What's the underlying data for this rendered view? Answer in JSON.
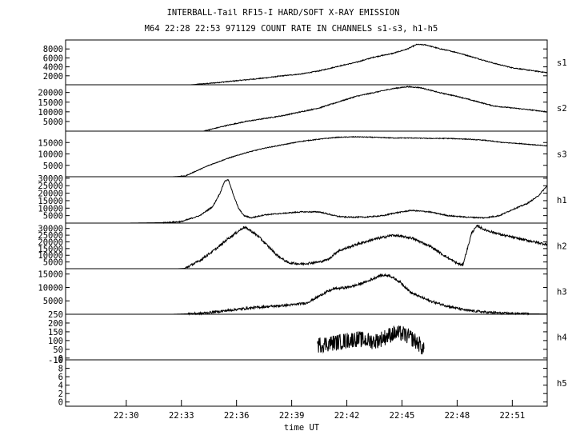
{
  "title_line1": "INTERBALL-Tail RF15-I HARD/SOFT X-RAY EMISSION",
  "title_line2": "M64  22:28 22:53 971129  COUNT RATE IN CHANNELS s1-s3, h1-h5",
  "chart_data": {
    "type": "line",
    "xlabel": "time UT",
    "x_ticks": [
      "22:30",
      "22:33",
      "22:36",
      "22:39",
      "22:42",
      "22:45",
      "22:48",
      "22:51"
    ],
    "x_tick_minutes": [
      2,
      5,
      8,
      11,
      14,
      17,
      20,
      23
    ],
    "xlim_minutes_after_22_28": [
      -1.3,
      24.9
    ],
    "line_color": "#000000",
    "panels": [
      {
        "name": "s1",
        "ylim": [
          0,
          10000
        ],
        "yticks": [
          2000,
          4000,
          6000,
          8000
        ],
        "tick_labels": [
          "2000",
          "4000",
          "6000",
          "8000"
        ],
        "noise": 0.01,
        "points": [
          [
            5.5,
            0
          ],
          [
            6.5,
            300
          ],
          [
            7.5,
            700
          ],
          [
            8.5,
            1100
          ],
          [
            9.5,
            1500
          ],
          [
            10.5,
            2000
          ],
          [
            11.5,
            2400
          ],
          [
            12.5,
            3100
          ],
          [
            13.5,
            4100
          ],
          [
            14.5,
            5000
          ],
          [
            15.5,
            6200
          ],
          [
            16.5,
            7000
          ],
          [
            17.3,
            8000
          ],
          [
            17.8,
            9000
          ],
          [
            18.3,
            8900
          ],
          [
            19.0,
            8100
          ],
          [
            20.0,
            7200
          ],
          [
            21.0,
            6000
          ],
          [
            22.0,
            4800
          ],
          [
            23.0,
            3800
          ],
          [
            24.0,
            3200
          ],
          [
            24.9,
            2700
          ]
        ]
      },
      {
        "name": "s2",
        "ylim": [
          0,
          24000
        ],
        "yticks": [
          5000,
          10000,
          15000,
          20000
        ],
        "tick_labels": [
          "5000",
          "10000",
          "15000",
          "20000"
        ],
        "noise": 0.01,
        "points": [
          [
            6.2,
            0
          ],
          [
            7.5,
            3000
          ],
          [
            8.5,
            5000
          ],
          [
            9.5,
            6500
          ],
          [
            10.5,
            8000
          ],
          [
            11.5,
            10000
          ],
          [
            12.5,
            12000
          ],
          [
            13.5,
            15000
          ],
          [
            14.5,
            18000
          ],
          [
            15.5,
            20000
          ],
          [
            16.5,
            22000
          ],
          [
            17.3,
            23000
          ],
          [
            18.0,
            22500
          ],
          [
            19.0,
            20000
          ],
          [
            20.0,
            18000
          ],
          [
            21.0,
            15500
          ],
          [
            22.0,
            13000
          ],
          [
            23.0,
            12000
          ],
          [
            24.0,
            11000
          ],
          [
            24.9,
            10000
          ]
        ]
      },
      {
        "name": "s3",
        "ylim": [
          0,
          20000
        ],
        "yticks": [
          5000,
          10000,
          15000
        ],
        "tick_labels": [
          "5000",
          "10000",
          "15000"
        ],
        "noise": 0.008,
        "points": [
          [
            4.5,
            0
          ],
          [
            5.2,
            300
          ],
          [
            5.8,
            2500
          ],
          [
            6.5,
            5000
          ],
          [
            7.5,
            8000
          ],
          [
            8.5,
            10500
          ],
          [
            9.5,
            12500
          ],
          [
            10.5,
            14000
          ],
          [
            11.5,
            15500
          ],
          [
            12.5,
            16500
          ],
          [
            13.5,
            17300
          ],
          [
            14.5,
            17500
          ],
          [
            15.5,
            17300
          ],
          [
            16.5,
            17000
          ],
          [
            17.5,
            17000
          ],
          [
            18.5,
            16800
          ],
          [
            19.5,
            16800
          ],
          [
            20.5,
            16500
          ],
          [
            21.5,
            16000
          ],
          [
            22.5,
            15000
          ],
          [
            23.5,
            14500
          ],
          [
            24.9,
            13500
          ]
        ]
      },
      {
        "name": "h1",
        "ylim": [
          0,
          31000
        ],
        "yticks": [
          5000,
          10000,
          15000,
          20000,
          25000,
          30000
        ],
        "tick_labels": [
          "5000",
          "10000",
          "15000",
          "20000",
          "25000",
          "30000"
        ],
        "noise": 0.012,
        "points": [
          [
            2.0,
            0
          ],
          [
            4.0,
            300
          ],
          [
            5.0,
            1000
          ],
          [
            6.0,
            5000
          ],
          [
            6.7,
            11000
          ],
          [
            7.1,
            20000
          ],
          [
            7.35,
            28000
          ],
          [
            7.55,
            29000
          ],
          [
            7.8,
            20000
          ],
          [
            8.1,
            10000
          ],
          [
            8.4,
            5000
          ],
          [
            8.8,
            3500
          ],
          [
            9.5,
            5500
          ],
          [
            10.5,
            6500
          ],
          [
            11.5,
            7500
          ],
          [
            12.5,
            7500
          ],
          [
            13.0,
            6000
          ],
          [
            13.5,
            4500
          ],
          [
            14.0,
            4000
          ],
          [
            15.0,
            4000
          ],
          [
            16.0,
            5000
          ],
          [
            16.5,
            6500
          ],
          [
            17.5,
            8500
          ],
          [
            18.5,
            7500
          ],
          [
            19.5,
            5000
          ],
          [
            20.5,
            4000
          ],
          [
            21.5,
            3500
          ],
          [
            22.3,
            5000
          ],
          [
            23.0,
            9000
          ],
          [
            23.8,
            13000
          ],
          [
            24.4,
            18000
          ],
          [
            24.9,
            25000
          ]
        ]
      },
      {
        "name": "h2",
        "ylim": [
          0,
          34000
        ],
        "yticks": [
          5000,
          10000,
          15000,
          20000,
          25000,
          30000
        ],
        "tick_labels": [
          "5000",
          "10000",
          "15000",
          "20000",
          "25000",
          "30000"
        ],
        "noise": 0.025,
        "points": [
          [
            4.8,
            0
          ],
          [
            5.2,
            300
          ],
          [
            6.0,
            6000
          ],
          [
            7.0,
            16000
          ],
          [
            7.5,
            22000
          ],
          [
            8.0,
            27000
          ],
          [
            8.4,
            31000
          ],
          [
            8.7,
            29000
          ],
          [
            9.2,
            24000
          ],
          [
            9.7,
            17000
          ],
          [
            10.2,
            10000
          ],
          [
            10.8,
            4500
          ],
          [
            11.5,
            3500
          ],
          [
            12.5,
            5000
          ],
          [
            13.0,
            7000
          ],
          [
            13.5,
            13000
          ],
          [
            14.5,
            18000
          ],
          [
            15.5,
            22000
          ],
          [
            16.5,
            25000
          ],
          [
            17.5,
            23000
          ],
          [
            18.5,
            17000
          ],
          [
            19.5,
            8000
          ],
          [
            20.0,
            4000
          ],
          [
            20.3,
            2500
          ],
          [
            20.5,
            12000
          ],
          [
            20.8,
            27000
          ],
          [
            21.1,
            32000
          ],
          [
            21.5,
            29000
          ],
          [
            22.5,
            25000
          ],
          [
            23.5,
            22000
          ],
          [
            24.9,
            18000
          ]
        ]
      },
      {
        "name": "h3",
        "ylim": [
          0,
          17000
        ],
        "yticks": [
          5000,
          10000,
          15000
        ],
        "tick_labels": [
          "5000",
          "10000",
          "15000"
        ],
        "noise": 0.025,
        "points": [
          [
            4.5,
            0
          ],
          [
            6.0,
            300
          ],
          [
            7.0,
            1000
          ],
          [
            8.0,
            1800
          ],
          [
            9.0,
            2500
          ],
          [
            10.0,
            3000
          ],
          [
            11.0,
            3500
          ],
          [
            11.8,
            4200
          ],
          [
            12.3,
            6000
          ],
          [
            12.8,
            8000
          ],
          [
            13.3,
            9500
          ],
          [
            14.0,
            10000
          ],
          [
            14.6,
            11000
          ],
          [
            15.2,
            12500
          ],
          [
            15.8,
            14500
          ],
          [
            16.3,
            14500
          ],
          [
            16.9,
            12000
          ],
          [
            17.5,
            8000
          ],
          [
            18.5,
            5000
          ],
          [
            19.5,
            3000
          ],
          [
            20.5,
            1500
          ],
          [
            21.5,
            800
          ],
          [
            22.5,
            400
          ],
          [
            23.5,
            200
          ],
          [
            24.9,
            100
          ]
        ]
      },
      {
        "name": "h4",
        "ylim": [
          -10,
          250
        ],
        "yticks": [
          -10,
          0,
          50,
          100,
          150,
          200,
          250
        ],
        "tick_labels": [
          "-10",
          "0",
          "50",
          "100",
          "150",
          "200",
          "250"
        ],
        "noise": 0.2,
        "points": [
          [
            12.4,
            75
          ],
          [
            13.5,
            90
          ],
          [
            14.5,
            110
          ],
          [
            15.5,
            95
          ],
          [
            16.0,
            115
          ],
          [
            16.5,
            140
          ],
          [
            17.0,
            140
          ],
          [
            17.5,
            115
          ],
          [
            18.0,
            75
          ],
          [
            18.2,
            40
          ]
        ]
      },
      {
        "name": "h5",
        "ylim": [
          -1,
          10
        ],
        "yticks": [
          0,
          2,
          4,
          6,
          8,
          10
        ],
        "tick_labels": [
          "0",
          "2",
          "4",
          "6",
          "8",
          "10"
        ],
        "noise": 0,
        "points": []
      }
    ]
  }
}
